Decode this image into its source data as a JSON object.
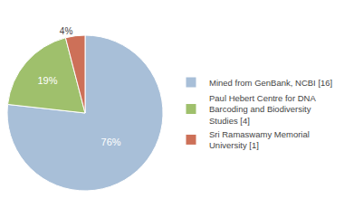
{
  "chart_data": {
    "type": "pie",
    "categories": [
      "Mined from GenBank, NCBI [16]",
      "Paul Hebert Centre for DNA\nBarcoding and Biodiversity\nStudies [4]",
      "Sri Ramaswamy Memorial\nUniversity [1]"
    ],
    "values": [
      76,
      19,
      4
    ],
    "value_labels": [
      "76%",
      "19%",
      "4%"
    ],
    "colors": [
      "#a8bfd8",
      "#9fc06c",
      "#cd7058"
    ],
    "data_labels": true,
    "legend": "right"
  }
}
